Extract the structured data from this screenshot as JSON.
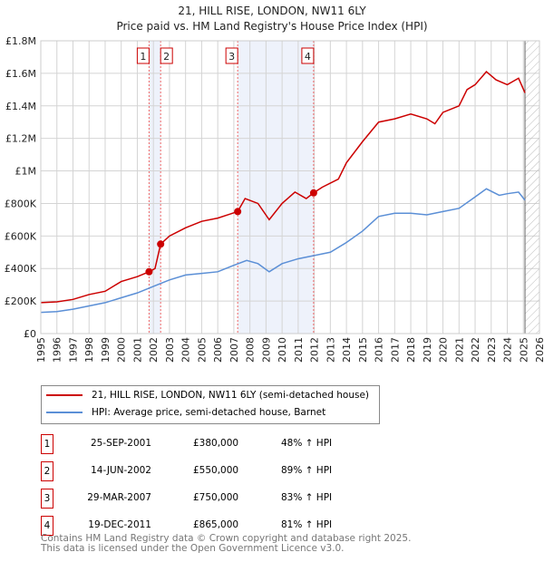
{
  "title": "21, HILL RISE, LONDON, NW11 6LY",
  "subtitle": "Price paid vs. HM Land Registry's House Price Index (HPI)",
  "chart_data": {
    "type": "line",
    "title": "21, HILL RISE, LONDON, NW11 6LY",
    "ylim": [
      0,
      1800000
    ],
    "xlim": [
      1995,
      2026
    ],
    "yticks": [
      {
        "v": 0,
        "label": "£0"
      },
      {
        "v": 200000,
        "label": "£200K"
      },
      {
        "v": 400000,
        "label": "£400K"
      },
      {
        "v": 600000,
        "label": "£600K"
      },
      {
        "v": 800000,
        "label": "£800K"
      },
      {
        "v": 1000000,
        "label": "£1M"
      },
      {
        "v": 1200000,
        "label": "£1.2M"
      },
      {
        "v": 1400000,
        "label": "£1.4M"
      },
      {
        "v": 1600000,
        "label": "£1.6M"
      },
      {
        "v": 1800000,
        "label": "£1.8M"
      }
    ],
    "xticks": [
      1995,
      1996,
      1997,
      1998,
      1999,
      2000,
      2001,
      2002,
      2003,
      2004,
      2005,
      2006,
      2007,
      2008,
      2009,
      2010,
      2011,
      2012,
      2013,
      2014,
      2015,
      2016,
      2017,
      2018,
      2019,
      2020,
      2021,
      2022,
      2023,
      2024,
      2025,
      2026
    ],
    "series": [
      {
        "name": "21, HILL RISE, LONDON, NW11 6LY (semi-detached house)",
        "color": "#cc0000",
        "x": [
          1995,
          1996,
          1997,
          1998,
          1999,
          2000,
          2001,
          2001.73,
          2002.1,
          2002.45,
          2003,
          2004,
          2005,
          2006,
          2007.24,
          2007.7,
          2008.5,
          2009.2,
          2010,
          2010.8,
          2011.5,
          2011.96,
          2012.5,
          2013.5,
          2014,
          2015,
          2016,
          2017,
          2018,
          2019,
          2019.5,
          2020,
          2021,
          2021.5,
          2022,
          2022.7,
          2023.3,
          2024,
          2024.7,
          2025.1
        ],
        "y": [
          190000,
          195000,
          210000,
          240000,
          260000,
          320000,
          350000,
          380000,
          400000,
          550000,
          600000,
          650000,
          690000,
          710000,
          750000,
          830000,
          800000,
          700000,
          800000,
          870000,
          830000,
          865000,
          900000,
          950000,
          1050000,
          1180000,
          1300000,
          1320000,
          1350000,
          1320000,
          1290000,
          1360000,
          1400000,
          1500000,
          1530000,
          1610000,
          1560000,
          1530000,
          1570000,
          1480000
        ]
      },
      {
        "name": "HPI: Average price, semi-detached house, Barnet",
        "color": "#5b8fd6",
        "x": [
          1995,
          1996,
          1997,
          1998,
          1999,
          2000,
          2001,
          2002,
          2003,
          2004,
          2005,
          2006,
          2007,
          2007.8,
          2008.5,
          2009.2,
          2010,
          2011,
          2012,
          2013,
          2014,
          2015,
          2016,
          2017,
          2018,
          2019,
          2020,
          2021,
          2022,
          2022.7,
          2023.5,
          2024,
          2024.7,
          2025.1
        ],
        "y": [
          130000,
          135000,
          150000,
          170000,
          190000,
          220000,
          250000,
          290000,
          330000,
          360000,
          370000,
          380000,
          420000,
          450000,
          430000,
          380000,
          430000,
          460000,
          480000,
          500000,
          560000,
          630000,
          720000,
          740000,
          740000,
          730000,
          750000,
          770000,
          840000,
          890000,
          850000,
          860000,
          870000,
          820000
        ]
      }
    ],
    "events": [
      {
        "id": "1",
        "date": "25-SEP-2001",
        "x": 2001.73,
        "price": "£380,000",
        "value": 380000,
        "hpi": "48% ↑ HPI"
      },
      {
        "id": "2",
        "date": "14-JUN-2002",
        "x": 2002.45,
        "price": "£550,000",
        "value": 550000,
        "hpi": "89% ↑ HPI"
      },
      {
        "id": "3",
        "date": "29-MAR-2007",
        "x": 2007.24,
        "price": "£750,000",
        "value": 750000,
        "hpi": "83% ↑ HPI"
      },
      {
        "id": "4",
        "date": "19-DEC-2011",
        "x": 2011.96,
        "price": "£865,000",
        "value": 865000,
        "hpi": "81% ↑ HPI"
      }
    ],
    "forecast_start": 2025.1,
    "legend_position": "below"
  },
  "footer": [
    "Contains HM Land Registry data © Crown copyright and database right 2025.",
    "This data is licensed under the Open Government Licence v3.0."
  ]
}
